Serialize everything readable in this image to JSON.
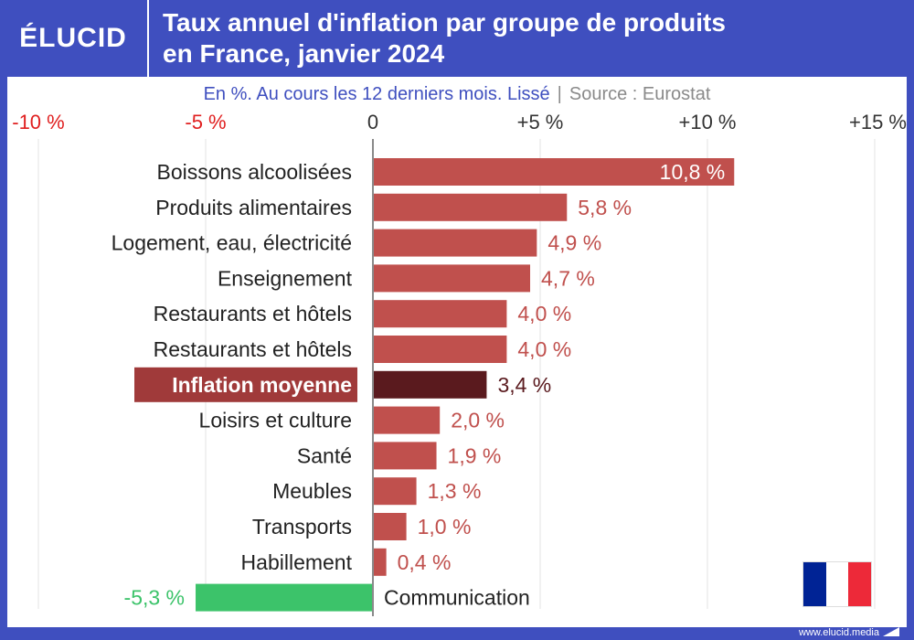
{
  "header": {
    "logo": "ÉLUCID",
    "title_line1": "Taux annuel d'inflation par groupe de produits",
    "title_line2": "en France, janvier 2024"
  },
  "subtitle": {
    "text": "En %. Au cours les 12 derniers mois. Lissé",
    "separator": "|",
    "source": "Source : Eurostat"
  },
  "footer": {
    "url": "www.elucid.media"
  },
  "flag": {
    "colors": [
      "#002395",
      "#ffffff",
      "#ed2939"
    ]
  },
  "colors": {
    "bar": "#c0504d",
    "highlight_bar": "#5a1a1e",
    "highlight_label_bg": "#a03a3a",
    "negative_bar": "#3cc36a",
    "negative_tick": "#e02020",
    "positive_tick": "#333333"
  },
  "chart_data": {
    "type": "bar",
    "orientation": "horizontal",
    "xlim": [
      -10,
      15
    ],
    "ticks": [
      {
        "value": -10,
        "label": "-10 %"
      },
      {
        "value": -5,
        "label": "-5 %"
      },
      {
        "value": 0,
        "label": "0"
      },
      {
        "value": 5,
        "label": "+5 %"
      },
      {
        "value": 10,
        "label": "+10 %"
      },
      {
        "value": 15,
        "label": "+15 %"
      }
    ],
    "grid": true,
    "categories": [
      "Boissons alcoolisées",
      "Produits alimentaires",
      "Logement, eau, électricité",
      "Enseignement",
      "Restaurants et hôtels",
      "Restaurants et hôtels",
      "Inflation moyenne",
      "Loisirs et culture",
      "Santé",
      "Meubles",
      "Transports",
      "Habillement",
      "Communication"
    ],
    "values": [
      10.8,
      5.8,
      4.9,
      4.7,
      4.0,
      4.0,
      3.4,
      2.0,
      1.9,
      1.3,
      1.0,
      0.4,
      -5.3
    ],
    "value_labels": [
      "10,8 %",
      "5,8 %",
      "4,9 %",
      "4,7 %",
      "4,0 %",
      "4,0 %",
      "3,4 %",
      "2,0 %",
      "1,9 %",
      "1,3 %",
      "1,0 %",
      "0,4 %",
      "-5,3 %"
    ],
    "highlight": "Inflation moyenne"
  }
}
